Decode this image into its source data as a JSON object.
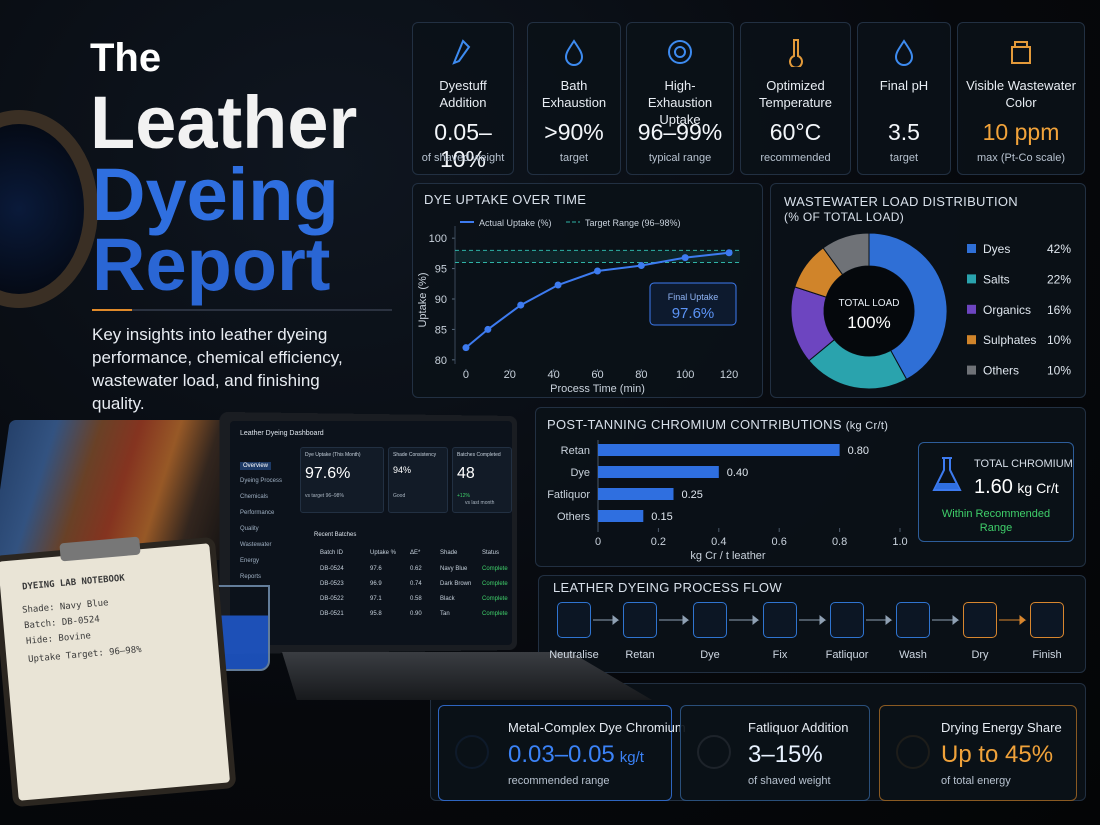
{
  "header": {
    "title_line1": "The",
    "title_line2": "Leather",
    "title_line3": "Dyeing",
    "title_line4": "Report",
    "subtitle": "Key insights into leather dyeing performance, chemical efficiency, wastewater load, and finishing quality."
  },
  "kpis": [
    {
      "label": "Dyestuff Addition",
      "value": "0.05–10%",
      "note": "of shaved weight"
    },
    {
      "label": "Bath Exhaustion",
      "value": ">90%",
      "note": "target"
    },
    {
      "label": "High-Exhaustion Uptake",
      "value": "96–99%",
      "note": "typical range"
    },
    {
      "label": "Optimized Temperature",
      "value": "60°C",
      "note": "recommended"
    },
    {
      "label": "Final pH",
      "value": "3.5",
      "note": "target"
    },
    {
      "label": "Visible Wastewater Color",
      "value": "10 ppm",
      "note": "max (Pt-Co scale)"
    }
  ],
  "chart_data": [
    {
      "type": "line",
      "title": "DYE UPTAKE OVER TIME",
      "xlabel": "Process Time (min)",
      "ylabel": "Uptake (%)",
      "x": [
        0,
        10,
        25,
        42,
        60,
        80,
        100,
        120
      ],
      "series": [
        {
          "name": "Actual Uptake (%)",
          "color": "#3d7bf0",
          "values": [
            82,
            85,
            89,
            92.3,
            94.6,
            95.5,
            96.8,
            97.6
          ]
        }
      ],
      "target_range": [
        96,
        98
      ],
      "target_range_name": "Target Range (96–98%)",
      "target_color": "#2fb3a6",
      "annotation": {
        "label": "Final Uptake",
        "value": "97.6%"
      },
      "xlim": [
        -5,
        125
      ],
      "ylim": [
        78,
        102
      ],
      "xticks": [
        0,
        20,
        40,
        60,
        80,
        100,
        120
      ],
      "yticks": [
        80,
        85,
        90,
        95,
        100
      ]
    },
    {
      "type": "donut",
      "title": "WASTEWATER LOAD DISTRIBUTION",
      "subtitle": "(% OF TOTAL LOAD)",
      "categories": [
        "Dyes",
        "Salts",
        "Organics",
        "Sulphates",
        "Others"
      ],
      "values": [
        42,
        22,
        16,
        10,
        10
      ],
      "value_labels": [
        "42%",
        "22%",
        "16%",
        "10%",
        "10%"
      ],
      "colors": [
        "#2f6fd6",
        "#2aa3ad",
        "#6d45c0",
        "#d0842a",
        "#6f7277"
      ],
      "center_label": "TOTAL LOAD",
      "center_value": "100%"
    },
    {
      "type": "hbar",
      "title": "POST-TANNING CHROMIUM CONTRIBUTIONS",
      "unit": "(kg Cr/t)",
      "xlabel": "kg Cr / t leather",
      "categories": [
        "Retan",
        "Dye",
        "Fatliquor",
        "Others"
      ],
      "values": [
        0.8,
        0.4,
        0.25,
        0.15
      ],
      "value_labels": [
        "0.80",
        "0.40",
        "0.25",
        "0.15"
      ],
      "color": "#2f6fe0",
      "xlim": [
        0,
        1
      ],
      "xticks": [
        0,
        0.2,
        0.4,
        0.6,
        0.8,
        {
          "value": 1,
          "label": "1.0"
        }
      ],
      "total": {
        "label": "TOTAL CHROMIUM",
        "value": "1.60",
        "unit": "kg Cr/t",
        "status": "Within Recommended Range"
      }
    }
  ],
  "process_flow": {
    "title": "LEATHER DYEING PROCESS FLOW",
    "steps": [
      "Neutralise",
      "Retan",
      "Dye",
      "Fix",
      "Fatliquor",
      "Wash",
      "Dry",
      "Finish"
    ]
  },
  "bottom_cards": [
    {
      "label": "Metal-Complex Dye Chromium",
      "value": "0.03–0.05",
      "unit": "kg/t",
      "note": "recommended range"
    },
    {
      "label": "Fatliquor Addition",
      "value": "3–15%",
      "note": "of shaved weight"
    },
    {
      "label": "Drying Energy Share",
      "value": "Up to 45%",
      "note": "of total energy"
    }
  ],
  "laptop": {
    "title": "Leather Dyeing Dashboard",
    "nav": [
      "Overview",
      "Dyeing Process",
      "Chemicals",
      "Performance",
      "Quality",
      "Wastewater",
      "Energy",
      "Reports"
    ],
    "cards": [
      {
        "label": "Dye Uptake (This Month)",
        "value": "97.6%",
        "note": "vs target 96–98%"
      },
      {
        "label": "Shade Consistency",
        "value": "94%",
        "note": "Good"
      },
      {
        "label": "Batches Completed",
        "value": "48",
        "note": "+12%",
        "note2": "vs last month"
      }
    ],
    "table": {
      "title": "Recent Batches",
      "columns": [
        "Batch ID",
        "Uptake %",
        "ΔE*",
        "Shade",
        "Status"
      ],
      "rows": [
        [
          "DB-0524",
          "97.6",
          "0.62",
          "Navy Blue",
          "Complete"
        ],
        [
          "DB-0523",
          "96.9",
          "0.74",
          "Dark Brown",
          "Complete"
        ],
        [
          "DB-0522",
          "97.1",
          "0.58",
          "Black",
          "Complete"
        ],
        [
          "DB-0521",
          "95.8",
          "0.90",
          "Tan",
          "Complete"
        ]
      ]
    }
  },
  "notebook": {
    "title": "DYEING LAB NOTEBOOK",
    "lines": [
      "Shade: Navy Blue",
      "Batch: DB-0524",
      "Hide: Bovine",
      "Uptake Target: 96–98%"
    ]
  }
}
